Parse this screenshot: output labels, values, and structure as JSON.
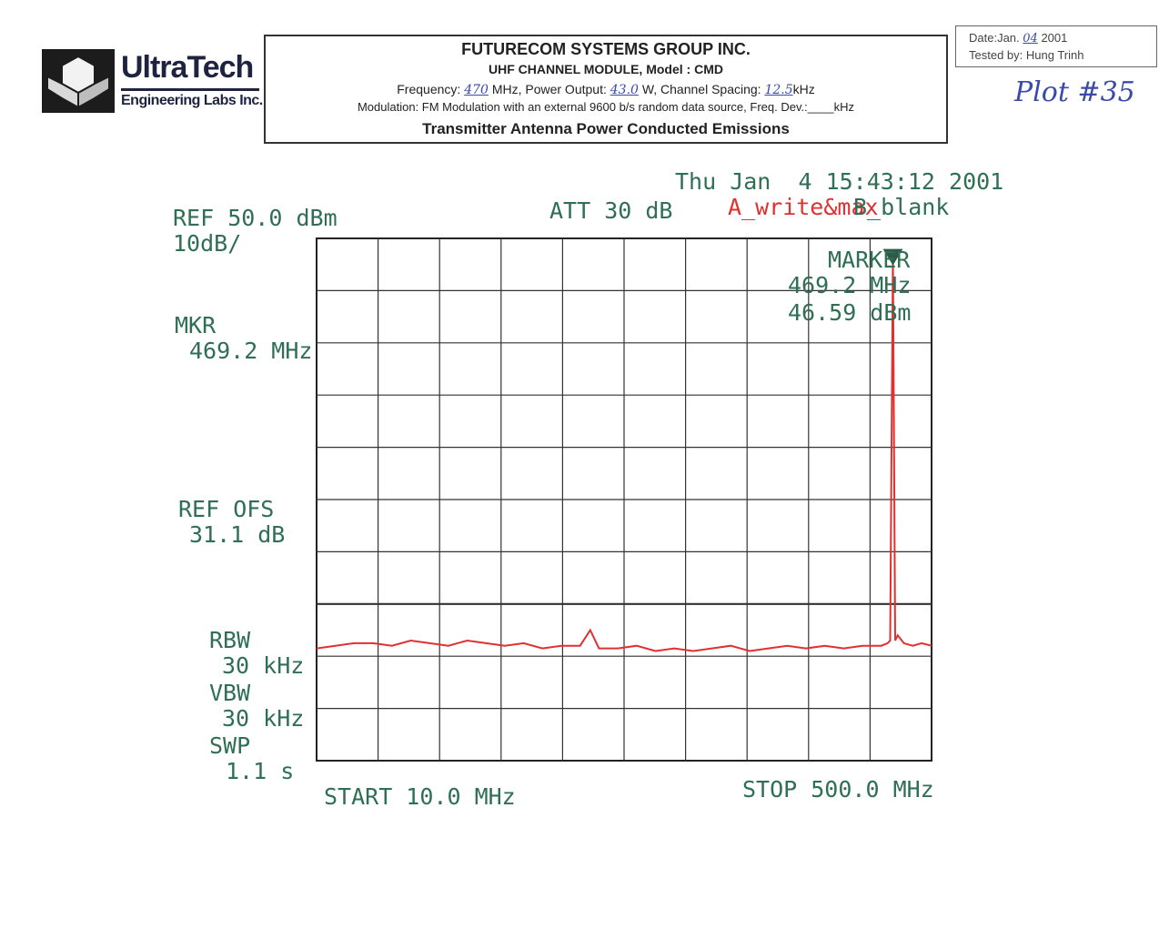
{
  "logo": {
    "name": "UltraTech",
    "subtitle": "Engineering Labs Inc."
  },
  "header": {
    "company": "FUTURECOM SYSTEMS GROUP INC.",
    "module": "UHF CHANNEL MODULE, Model : CMD",
    "freq_prefix": "Frequency:",
    "freq_value": "470",
    "freq_unit": "MHz, Power Output:",
    "power_value": "43.0",
    "power_unit": "W, Channel Spacing:",
    "spacing_value": "12.5",
    "spacing_unit": "kHz",
    "modulation": "Modulation: FM Modulation with an external 9600 b/s random data source, Freq. Dev.:____kHz",
    "test_title": "Transmitter Antenna Power Conducted Emissions"
  },
  "datebox": {
    "date_prefix": "Date:Jan.",
    "date_day": "04",
    "date_year": "2001",
    "tested_by": "Tested by:  Hung Trinh"
  },
  "plot_note": "Plot #35",
  "analyzer": {
    "timestamp": "Thu Jan  4 15:43:12 2001",
    "ref": "REF 50.0 dBm",
    "scale": "10dB/",
    "att": "ATT 30 dB",
    "trace_a": "A_write&max",
    "trace_b": "B_blank",
    "mkr_label": "MKR",
    "mkr_freq": "469.2 MHz",
    "ref_ofs_label": "REF OFS",
    "ref_ofs_value": "31.1 dB",
    "rbw_label": "RBW",
    "rbw_value": "30 kHz",
    "vbw_label": "VBW",
    "vbw_value": "30 kHz",
    "swp_label": "SWP",
    "swp_value": "1.1 s",
    "marker_title": "MARKER",
    "marker_freq": "469.2 MHz",
    "marker_level": "46.59 dBm",
    "start": "START 10.0 MHz",
    "stop": "STOP 500.0 MHz"
  },
  "chart_data": {
    "type": "line",
    "x_unit": "MHz",
    "y_unit": "dBm",
    "xlim": [
      10.0,
      500.0
    ],
    "ylim": [
      -50,
      50
    ],
    "grid": true,
    "noise_floor_dbm": -28,
    "series": [
      {
        "color": "#e03030",
        "x": [
          10,
          25,
          40,
          55,
          70,
          85,
          100,
          115,
          130,
          145,
          160,
          175,
          190,
          205,
          220,
          228,
          235,
          250,
          265,
          280,
          295,
          310,
          325,
          340,
          355,
          370,
          385,
          400,
          415,
          430,
          445,
          460,
          465,
          467,
          469.2,
          471,
          473,
          478,
          485,
          492,
          500
        ],
        "y": [
          -28.5,
          -28,
          -27.5,
          -27.5,
          -28,
          -27,
          -27.5,
          -28,
          -27,
          -27.5,
          -28,
          -27.5,
          -28.5,
          -28,
          -28,
          -25,
          -28.5,
          -28.5,
          -28,
          -29,
          -28.5,
          -29,
          -28.5,
          -28,
          -29,
          -28.5,
          -28,
          -28.5,
          -28,
          -28.5,
          -28,
          -28,
          -27.5,
          -27,
          46.59,
          -27,
          -26,
          -27.5,
          -28,
          -27.5,
          -28
        ]
      }
    ],
    "marker": {
      "x": 469.2,
      "y": 46.59
    }
  }
}
